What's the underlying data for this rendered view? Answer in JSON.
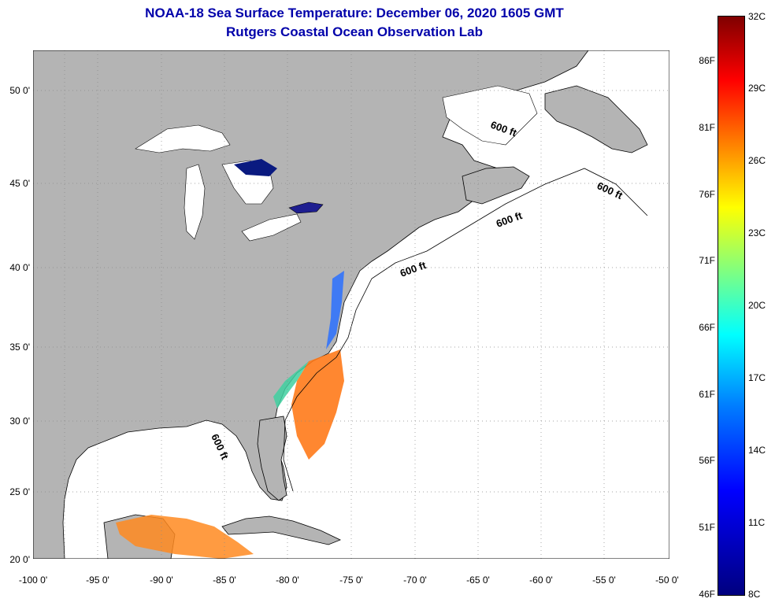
{
  "header": {
    "title": "NOAA-18 Sea Surface Temperature:  December 06, 2020 1605 GMT",
    "subtitle": "Rutgers Coastal Ocean Observation Lab"
  },
  "map": {
    "lat_ticks": [
      "50 0'",
      "45 0'",
      "40 0'",
      "35 0'",
      "30 0'",
      "25 0'",
      "20 0'"
    ],
    "lon_ticks": [
      "-100 0'",
      "-95 0'",
      "-90 0'",
      "-85 0'",
      "-80 0'",
      "-75 0'",
      "-70 0'",
      "-65 0'",
      "-60 0'",
      "-55 0'",
      "-50 0'"
    ],
    "isobath_labels": [
      "600 ft",
      "600 ft",
      "600 ft",
      "600 ft",
      "600 ft"
    ],
    "colors": {
      "land": "#b4b4b4",
      "ocean": "#ffffff",
      "coast": "#000000"
    }
  },
  "colorbar": {
    "fahrenheit": [
      "86F",
      "81F",
      "76F",
      "71F",
      "66F",
      "61F",
      "56F",
      "51F",
      "46F"
    ],
    "celsius": [
      "32C",
      "29C",
      "26C",
      "23C",
      "20C",
      "17C",
      "14C",
      "11C",
      "8C"
    ]
  }
}
